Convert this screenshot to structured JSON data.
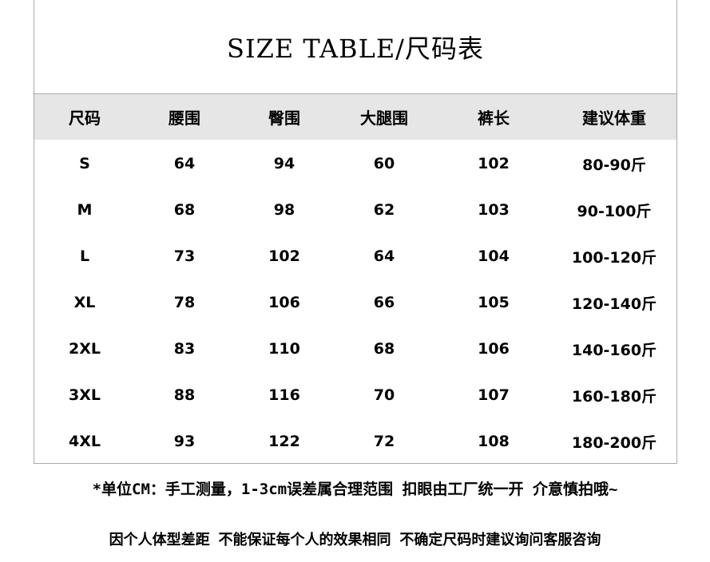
{
  "title": "SIZE TABLE/尺码表",
  "headers": [
    "尺码",
    "腰围",
    "臀围",
    "大腿围",
    "裤长",
    "建议体重"
  ],
  "rows": [
    [
      "S",
      "64",
      "94",
      "60",
      "102",
      "80-90斤"
    ],
    [
      "M",
      "68",
      "98",
      "62",
      "103",
      "90-100斤"
    ],
    [
      "L",
      "73",
      "102",
      "64",
      "104",
      "100-120斤"
    ],
    [
      "XL",
      "78",
      "106",
      "66",
      "105",
      "120-140斤"
    ],
    [
      "2XL",
      "83",
      "110",
      "68",
      "106",
      "140-160斤"
    ],
    [
      "3XL",
      "88",
      "116",
      "70",
      "107",
      "160-180斤"
    ],
    [
      "4XL",
      "93",
      "122",
      "72",
      "108",
      "180-200斤"
    ]
  ],
  "notes": [
    "*单位CM：手工测量，1-3cm误差属合理范围 扣眼由工厂统一开 介意慎拍哦~",
    "因个人体型差距 不能保证每个人的效果相同 不确定尺码时建议询问客服咨询"
  ],
  "colors": {
    "header_bg": "#e6e6e6",
    "border": "#aaaaaa"
  }
}
